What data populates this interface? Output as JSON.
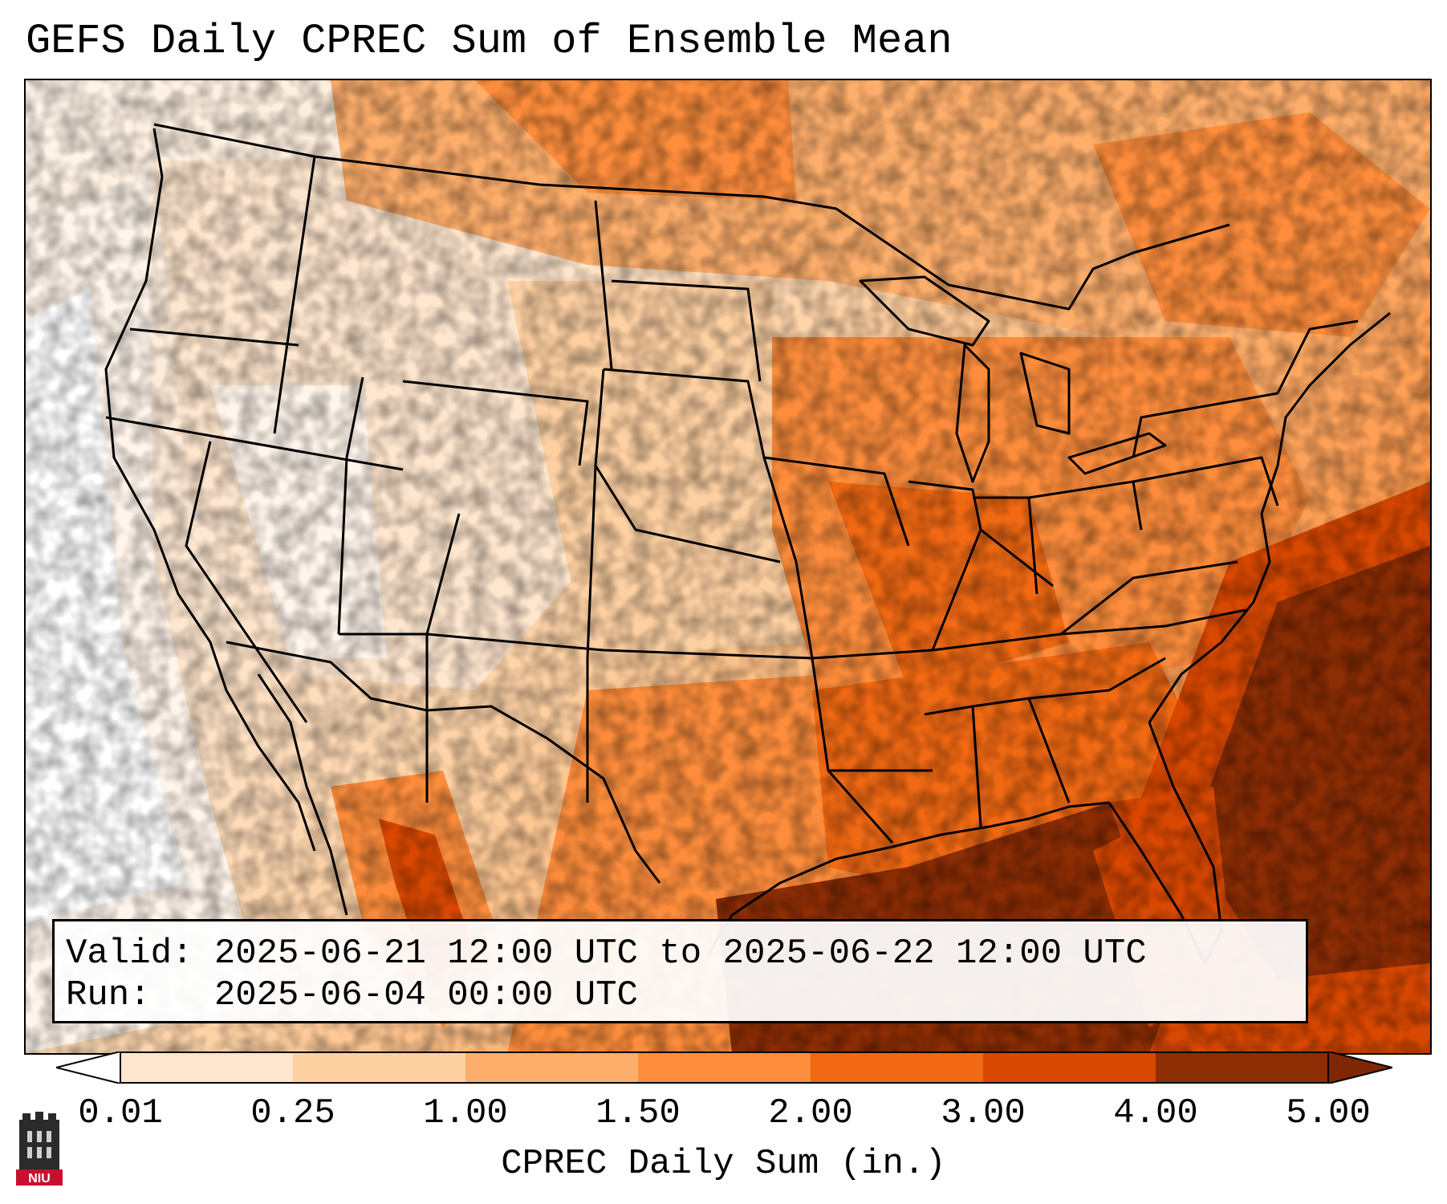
{
  "title": "GEFS Daily CPREC Sum of Ensemble Mean",
  "info": {
    "valid_label": "Valid:",
    "valid_value": "2025-06-21 12:00 UTC to 2025-06-22 12:00 UTC",
    "run_label": "Run:",
    "run_value": "2025-06-04 00:00 UTC"
  },
  "colorbar": {
    "label": "CPREC Daily Sum (in.)",
    "ticks": [
      "0.01",
      "0.25",
      "1.00",
      "1.50",
      "2.00",
      "3.00",
      "4.00",
      "5.00"
    ],
    "colors": [
      "#fff5eb",
      "#fee6ce",
      "#fdd0a2",
      "#fdae6b",
      "#fd8d3c",
      "#f16913",
      "#d94801",
      "#8c2d04"
    ],
    "under_color": "#ffffff",
    "over_color": "#7f2704"
  },
  "logo": {
    "text": "NIU"
  }
}
